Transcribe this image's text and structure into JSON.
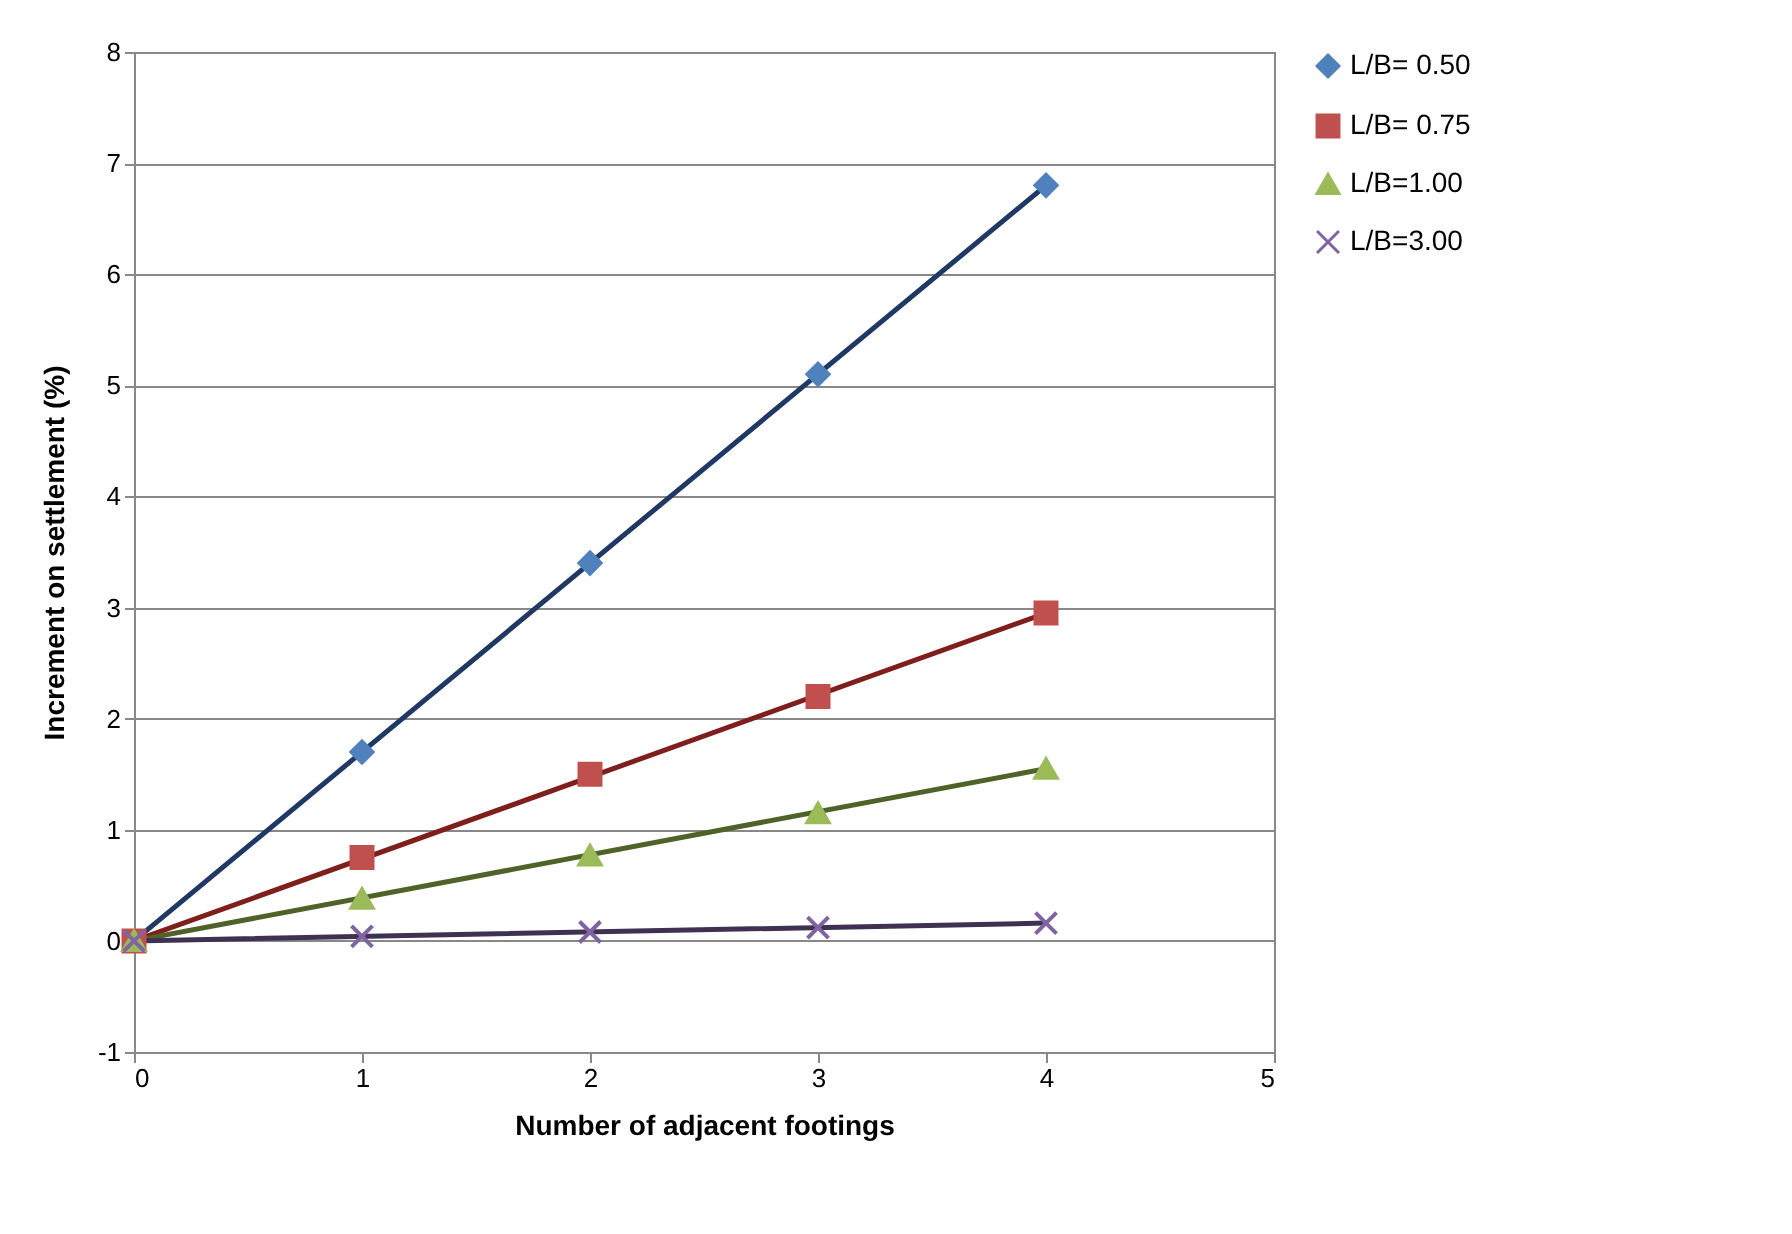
{
  "chart_data": {
    "type": "scatter",
    "xlabel": "Number of adjacent footings",
    "ylabel": "Increment on settlement (%)",
    "xlim": [
      0,
      5
    ],
    "xticks": [
      0,
      1,
      2,
      3,
      4,
      5
    ],
    "ylim": [
      -1,
      8
    ],
    "yticks": [
      -1,
      0,
      1,
      2,
      3,
      4,
      5,
      6,
      7,
      8
    ],
    "grid": "y",
    "legend": "right",
    "series": [
      {
        "name": "L/B= 0.50",
        "type": "scatter",
        "marker": "diamond",
        "color": "#4f81bd",
        "x": [
          1,
          2,
          3,
          4
        ],
        "values": [
          1.7,
          3.4,
          5.1,
          6.8
        ]
      },
      {
        "name": "L/B= 0.75",
        "type": "scatter",
        "marker": "square",
        "color": "#c0504d",
        "x": [
          0,
          1,
          2,
          3,
          4
        ],
        "values": [
          0,
          0.75,
          1.5,
          2.2,
          2.95
        ]
      },
      {
        "name": "L/B=1.00",
        "type": "scatter",
        "marker": "triangle",
        "color": "#9bbb59",
        "x": [
          0,
          1,
          2,
          3,
          4
        ],
        "values": [
          0,
          0.38,
          0.77,
          1.15,
          1.55
        ]
      },
      {
        "name": "L/B=3.00",
        "type": "scatter",
        "marker": "cross",
        "color": "#8064a2",
        "x": [
          0,
          1,
          2,
          3,
          4
        ],
        "values": [
          0,
          0.04,
          0.08,
          0.12,
          0.16
        ]
      },
      {
        "type": "line",
        "color": "#1f3864",
        "x": [
          0,
          4
        ],
        "values": [
          0,
          6.8
        ]
      },
      {
        "type": "line",
        "color": "#7f1f1c",
        "x": [
          0,
          4
        ],
        "values": [
          0,
          2.95
        ]
      },
      {
        "type": "line",
        "color": "#4f6228",
        "x": [
          0,
          4
        ],
        "values": [
          0,
          1.55
        ]
      },
      {
        "type": "line",
        "color": "#3f3151",
        "x": [
          0,
          4
        ],
        "values": [
          0,
          0.16
        ]
      }
    ]
  }
}
